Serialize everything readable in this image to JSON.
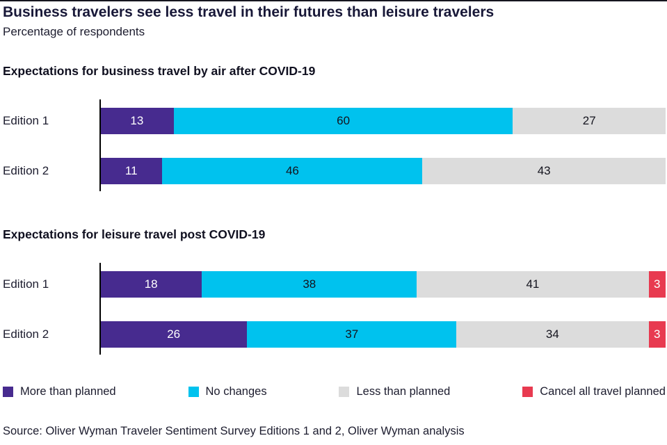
{
  "header": {
    "title": "Business travelers see less travel in their futures than leisure travelers",
    "subtitle": "Percentage of respondents"
  },
  "colors": {
    "more_than_planned": "#472B8F",
    "no_changes": "#00C2EE",
    "less_than_planned": "#DCDCDC",
    "cancel_all": "#E83A50",
    "title_text": "#181838",
    "axis": "#000000"
  },
  "chart_data": [
    {
      "type": "bar",
      "orientation": "horizontal",
      "stacked": true,
      "unit": "percent",
      "title": "Expectations for business travel by air after COVID-19",
      "categories": [
        "Edition 1",
        "Edition 2"
      ],
      "xlim": [
        0,
        100
      ],
      "grid": false,
      "series": [
        {
          "name": "More than planned",
          "color": "#472B8F",
          "label_color": "#FFFFFF",
          "values": [
            13,
            11
          ]
        },
        {
          "name": "No changes",
          "color": "#00C2EE",
          "label_color": "#14141E",
          "values": [
            60,
            46
          ]
        },
        {
          "name": "Less than planned",
          "color": "#DCDCDC",
          "label_color": "#14141E",
          "values": [
            27,
            43
          ]
        },
        {
          "name": "Cancel all travel planned",
          "color": "#E83A50",
          "label_color": "#FFFFFF",
          "values": [
            0,
            0
          ]
        }
      ]
    },
    {
      "type": "bar",
      "orientation": "horizontal",
      "stacked": true,
      "unit": "percent",
      "title": "Expectations for leisure travel post COVID-19",
      "categories": [
        "Edition 1",
        "Edition 2"
      ],
      "xlim": [
        0,
        100
      ],
      "grid": false,
      "series": [
        {
          "name": "More than planned",
          "color": "#472B8F",
          "label_color": "#FFFFFF",
          "values": [
            18,
            26
          ]
        },
        {
          "name": "No changes",
          "color": "#00C2EE",
          "label_color": "#14141E",
          "values": [
            38,
            37
          ]
        },
        {
          "name": "Less than planned",
          "color": "#DCDCDC",
          "label_color": "#14141E",
          "values": [
            41,
            34
          ]
        },
        {
          "name": "Cancel all travel planned",
          "color": "#E83A50",
          "label_color": "#FFFFFF",
          "values": [
            3,
            3
          ]
        }
      ]
    }
  ],
  "legend": {
    "items": [
      {
        "label": "More than planned",
        "color": "#472B8F"
      },
      {
        "label": "No changes",
        "color": "#00C2EE"
      },
      {
        "label": "Less than planned",
        "color": "#DCDCDC"
      },
      {
        "label": "Cancel all travel planned",
        "color": "#E83A50"
      }
    ]
  },
  "source": "Source: Oliver Wyman Traveler Sentiment Survey Editions 1 and 2, Oliver Wyman analysis"
}
